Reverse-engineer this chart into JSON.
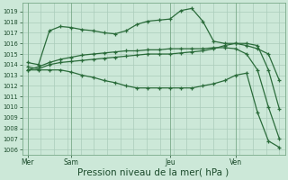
{
  "bg_color": "#cce8d8",
  "grid_color": "#aaccbb",
  "line_color": "#2a6b3a",
  "marker_color": "#2a6b3a",
  "xlabel": "Pression niveau de la mer( hPa )",
  "xlabel_fontsize": 7.5,
  "ylim": [
    1005.5,
    1019.8
  ],
  "yticks": [
    1006,
    1007,
    1008,
    1009,
    1010,
    1011,
    1012,
    1013,
    1014,
    1015,
    1016,
    1017,
    1018,
    1019
  ],
  "day_labels": [
    "Mer",
    "Sam",
    "Jeu",
    "Ven"
  ],
  "day_positions": [
    0,
    4,
    13,
    19
  ],
  "num_points": 24,
  "series1": [
    1014.2,
    1014.0,
    1017.2,
    1017.6,
    1017.5,
    1017.3,
    1017.2,
    1017.0,
    1016.9,
    1017.2,
    1017.8,
    1018.1,
    1018.2,
    1018.3,
    1019.1,
    1019.3,
    1018.1,
    1016.2,
    1016.0,
    1016.0,
    1015.8,
    1015.5,
    1015.0,
    1012.5
  ],
  "series2": [
    1013.5,
    1013.8,
    1014.2,
    1014.5,
    1014.7,
    1014.9,
    1015.0,
    1015.1,
    1015.2,
    1015.3,
    1015.3,
    1015.4,
    1015.4,
    1015.5,
    1015.5,
    1015.5,
    1015.5,
    1015.6,
    1015.6,
    1015.5,
    1015.0,
    1013.5,
    1010.0,
    1007.0
  ],
  "series3": [
    1013.8,
    1013.6,
    1014.0,
    1014.2,
    1014.3,
    1014.4,
    1014.5,
    1014.6,
    1014.7,
    1014.8,
    1014.9,
    1015.0,
    1015.0,
    1015.0,
    1015.1,
    1015.2,
    1015.3,
    1015.5,
    1015.8,
    1016.0,
    1016.0,
    1015.8,
    1013.5,
    1009.8
  ],
  "series4": [
    1013.5,
    1013.5,
    1013.5,
    1013.5,
    1013.3,
    1013.0,
    1012.8,
    1012.5,
    1012.3,
    1012.0,
    1011.8,
    1011.8,
    1011.8,
    1011.8,
    1011.8,
    1011.8,
    1012.0,
    1012.2,
    1012.5,
    1013.0,
    1013.2,
    1009.5,
    1006.8,
    1006.2
  ]
}
